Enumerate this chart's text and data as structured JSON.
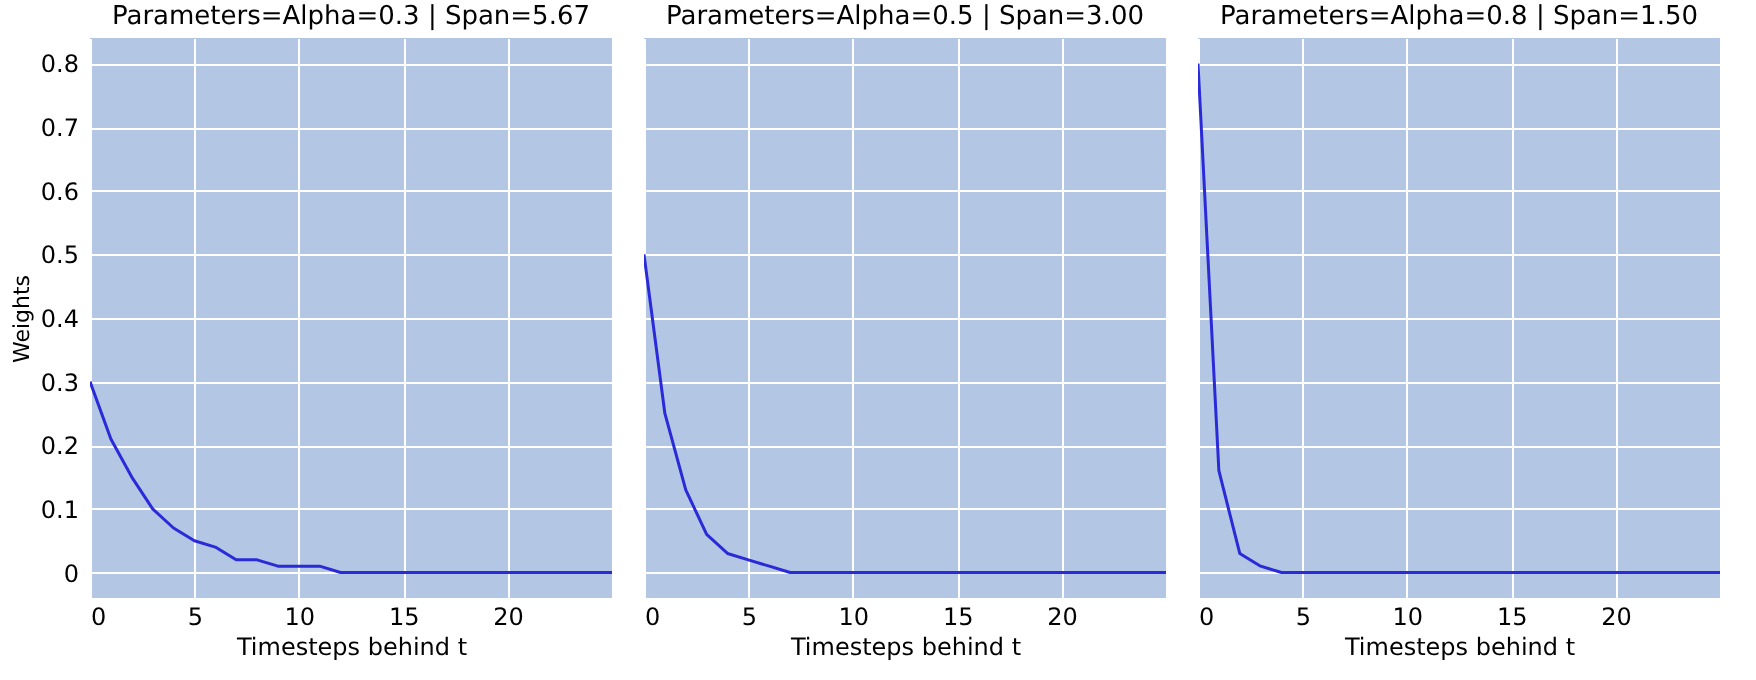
{
  "chart_data": [
    {
      "type": "line",
      "title": "Parameters=Alpha=0.3 | Span=5.67",
      "xlabel": "Timesteps behind t",
      "ylabel": "Weights",
      "x": [
        0,
        1,
        2,
        3,
        4,
        5,
        6,
        7,
        8,
        9,
        10,
        11,
        12,
        13,
        14,
        15,
        16,
        17,
        18,
        19,
        20,
        21,
        22,
        23,
        24,
        25
      ],
      "series": [
        {
          "color": "#2a2ad8",
          "values": [
            0.3,
            0.21,
            0.15,
            0.1,
            0.07,
            0.05,
            0.04,
            0.02,
            0.02,
            0.01,
            0.01,
            0.01,
            0,
            0,
            0,
            0,
            0,
            0,
            0,
            0,
            0,
            0,
            0,
            0,
            0,
            0
          ]
        }
      ],
      "xlim": [
        0,
        25
      ],
      "ylim": [
        -0.04,
        0.84
      ],
      "xticks": [
        0,
        5,
        10,
        15,
        20
      ],
      "yticks": [
        0,
        0.1,
        0.2,
        0.3,
        0.4,
        0.5,
        0.6,
        0.7,
        0.8
      ],
      "grid": true
    },
    {
      "type": "line",
      "title": "Parameters=Alpha=0.5 | Span=3.00",
      "xlabel": "Timesteps behind t",
      "x": [
        0,
        1,
        2,
        3,
        4,
        5,
        6,
        7,
        8,
        9,
        10,
        11,
        12,
        13,
        14,
        15,
        16,
        17,
        18,
        19,
        20,
        21,
        22,
        23,
        24,
        25
      ],
      "series": [
        {
          "color": "#2a2ad8",
          "values": [
            0.5,
            0.25,
            0.13,
            0.06,
            0.03,
            0.02,
            0.01,
            0,
            0,
            0,
            0,
            0,
            0,
            0,
            0,
            0,
            0,
            0,
            0,
            0,
            0,
            0,
            0,
            0,
            0,
            0
          ]
        }
      ],
      "xlim": [
        0,
        25
      ],
      "ylim": [
        -0.04,
        0.84
      ],
      "xticks": [
        0,
        5,
        10,
        15,
        20
      ],
      "yticks": [
        0,
        0.1,
        0.2,
        0.3,
        0.4,
        0.5,
        0.6,
        0.7,
        0.8
      ],
      "grid": true,
      "tick_labels": "x"
    },
    {
      "type": "line",
      "title": "Parameters=Alpha=0.8 | Span=1.50",
      "xlabel": "Timesteps behind t",
      "x": [
        0,
        1,
        2,
        3,
        4,
        5,
        6,
        7,
        8,
        9,
        10,
        11,
        12,
        13,
        14,
        15,
        16,
        17,
        18,
        19,
        20,
        21,
        22,
        23,
        24,
        25
      ],
      "series": [
        {
          "color": "#2a2ad8",
          "values": [
            0.8,
            0.16,
            0.03,
            0.01,
            0,
            0,
            0,
            0,
            0,
            0,
            0,
            0,
            0,
            0,
            0,
            0,
            0,
            0,
            0,
            0,
            0,
            0,
            0,
            0,
            0,
            0
          ]
        }
      ],
      "xlim": [
        0,
        25
      ],
      "ylim": [
        -0.04,
        0.84
      ],
      "xticks": [
        0,
        5,
        10,
        15,
        20
      ],
      "yticks": [
        0,
        0.1,
        0.2,
        0.3,
        0.4,
        0.5,
        0.6,
        0.7,
        0.8
      ],
      "grid": true,
      "tick_labels": "x"
    }
  ]
}
